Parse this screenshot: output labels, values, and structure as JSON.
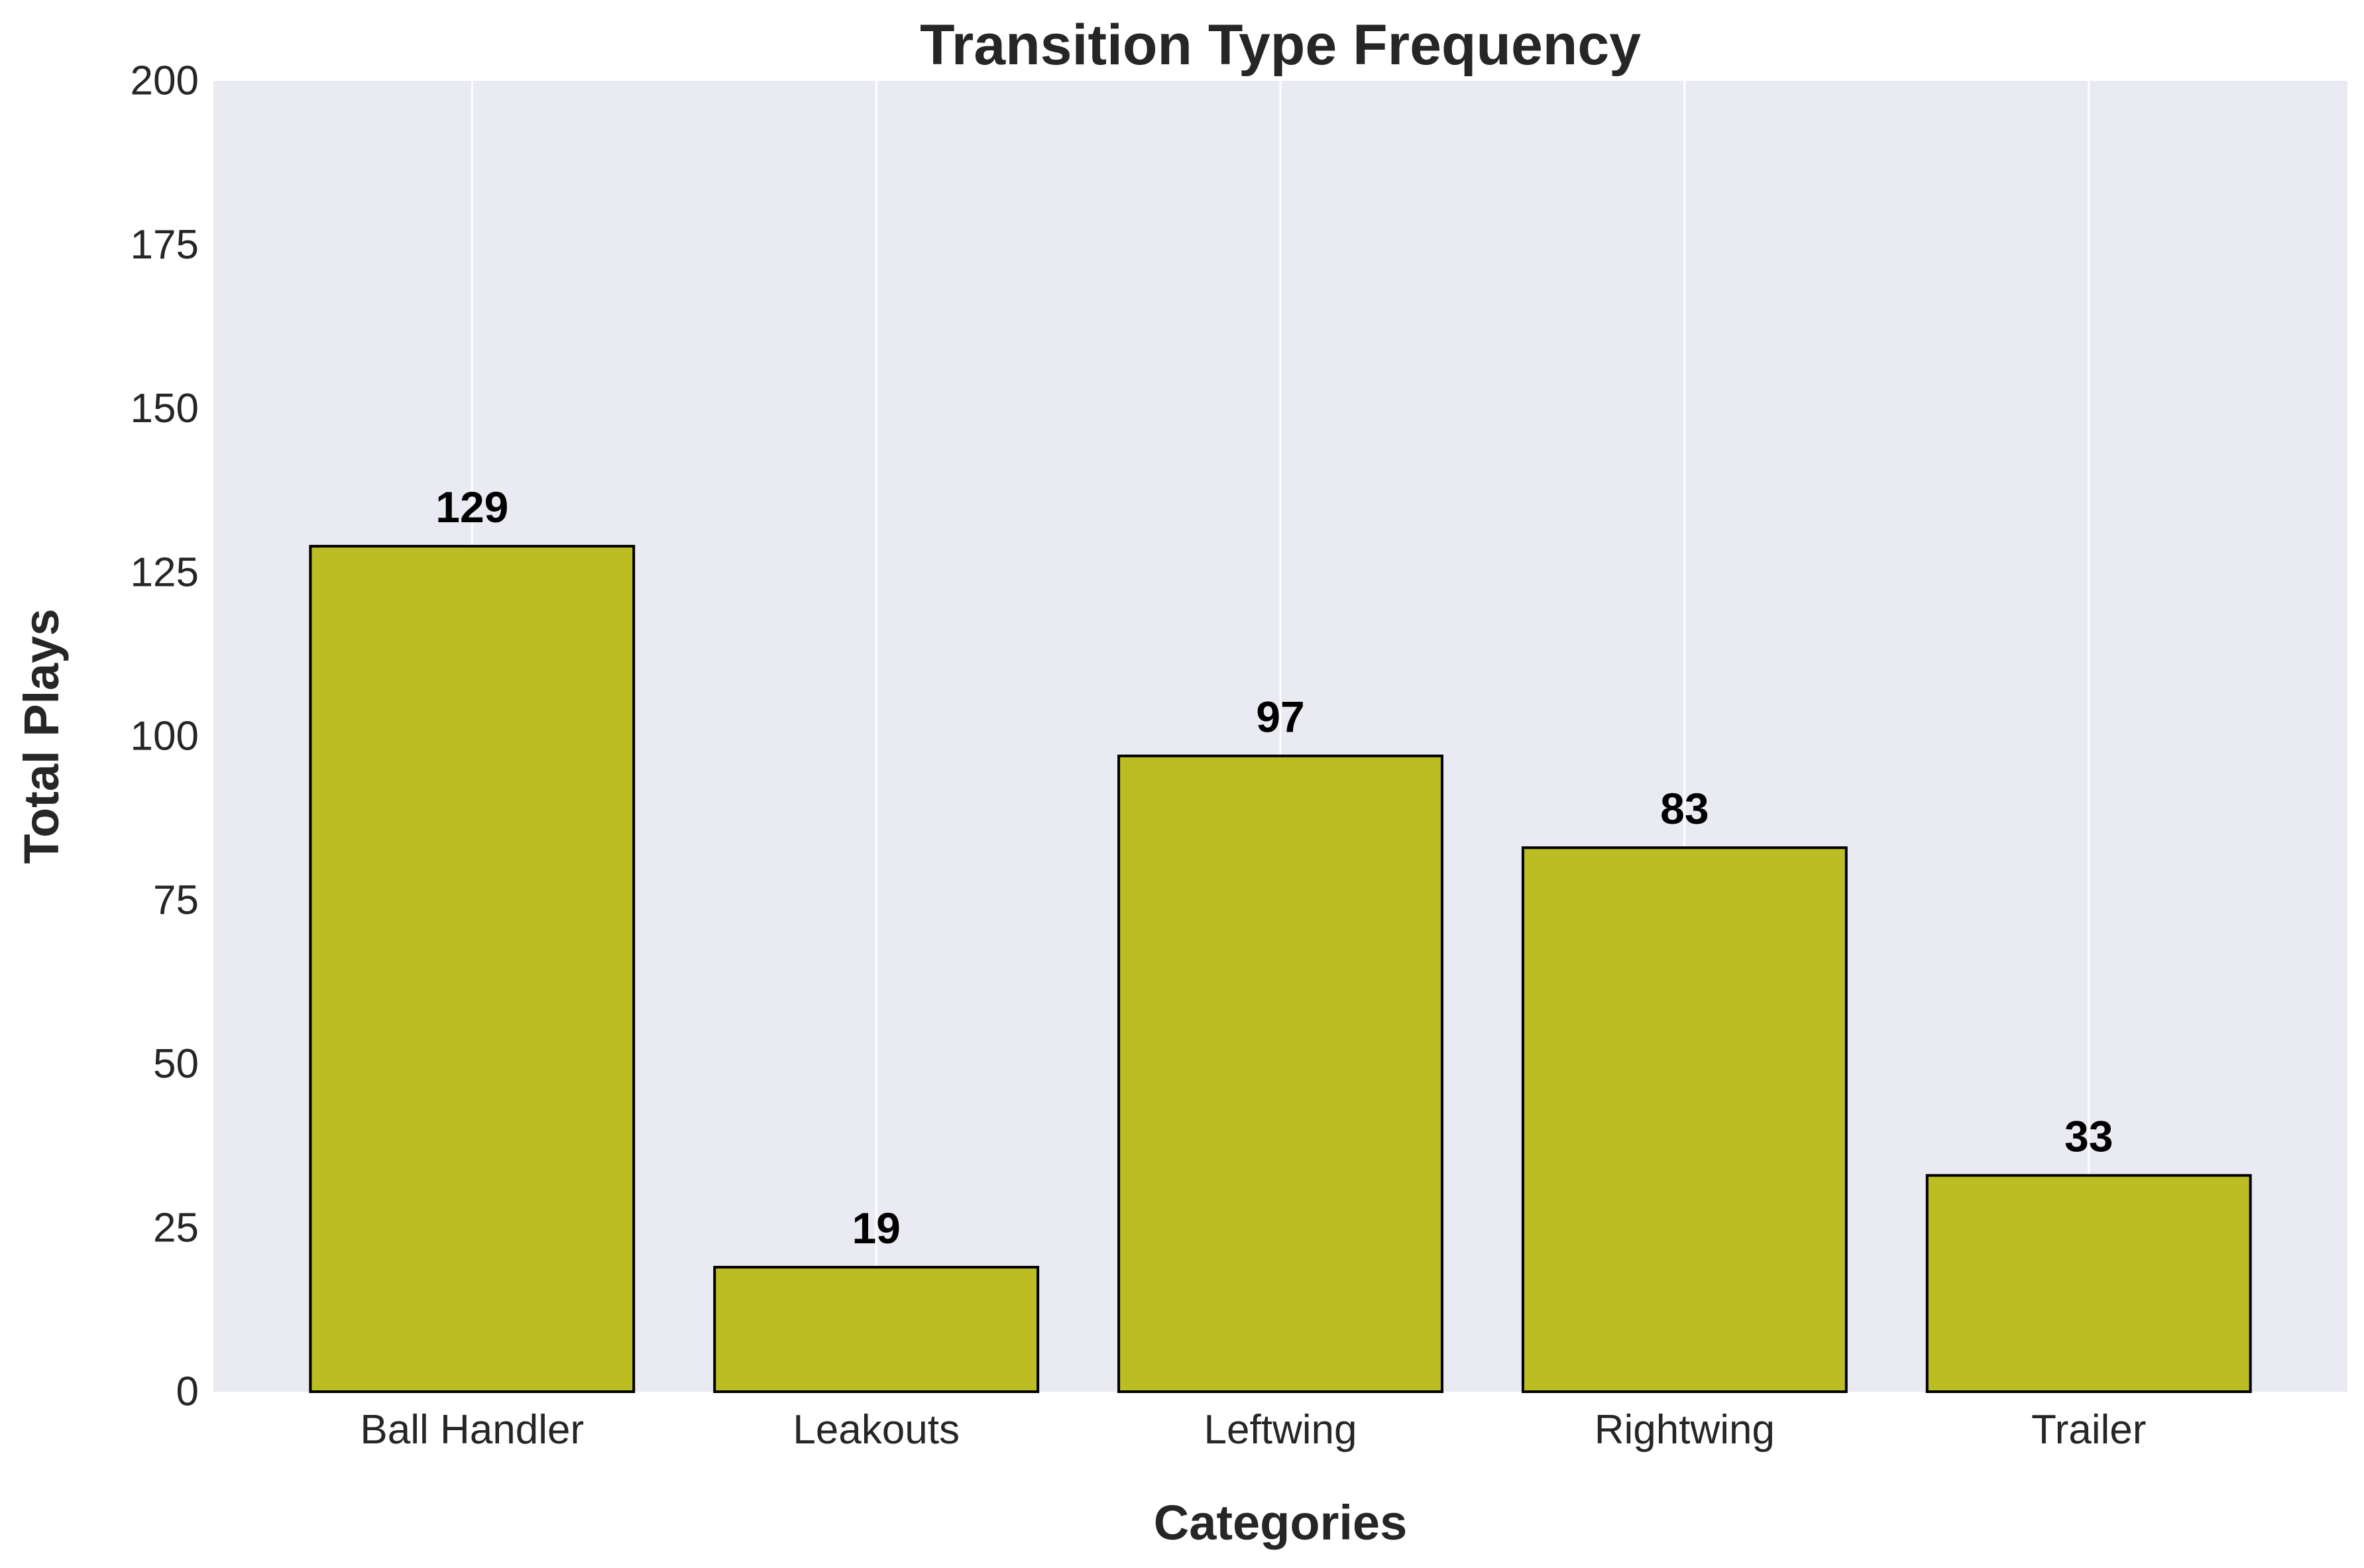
{
  "chart_data": {
    "type": "bar",
    "title": "Transition Type Frequency",
    "xlabel": "Categories",
    "ylabel": "Total Plays",
    "categories": [
      "Ball Handler",
      "Leakouts",
      "Leftwing",
      "Rightwing",
      "Trailer"
    ],
    "values": [
      129,
      19,
      97,
      83,
      33
    ],
    "data_labels": [
      "129",
      "19",
      "97",
      "83",
      "33"
    ],
    "ylim": [
      0,
      200
    ],
    "yticks": [
      0,
      25,
      50,
      75,
      100,
      125,
      150,
      175,
      200
    ],
    "ytick_labels": [
      "0",
      "25",
      "50",
      "75",
      "100",
      "125",
      "150",
      "175",
      "200"
    ],
    "grid": "vertical",
    "legend": "none",
    "colors": {
      "bar_fill": "#bcbd22",
      "bar_edge": "#000000",
      "plot_background": "#eaeaf2",
      "grid": "#ffffff",
      "text": "#262626"
    }
  }
}
